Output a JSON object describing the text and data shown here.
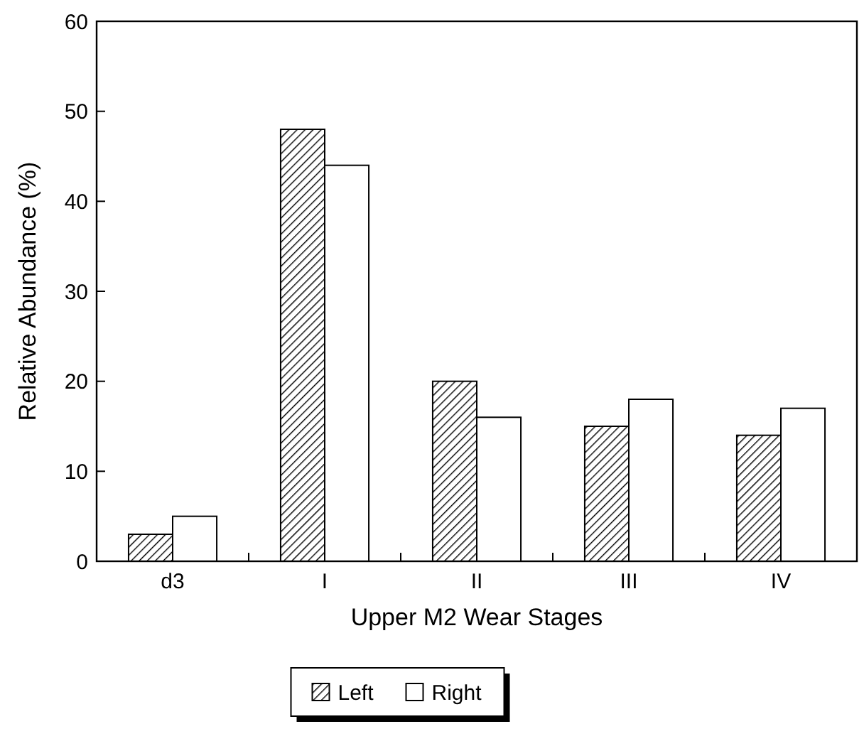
{
  "chart_data": {
    "type": "bar",
    "xlabel": "Upper M2 Wear Stages",
    "ylabel": "Relative Abundance (%)",
    "categories": [
      "d3",
      "I",
      "II",
      "III",
      "IV"
    ],
    "series": [
      {
        "name": "Left",
        "color": "#000000",
        "values": [
          3,
          48,
          20,
          15,
          14
        ]
      },
      {
        "name": "Right",
        "color": "#ffffff",
        "values": [
          5,
          44,
          16,
          18,
          17
        ]
      }
    ],
    "ylim": [
      0,
      60
    ],
    "yticks": [
      0,
      10,
      20,
      30,
      40,
      50,
      60
    ],
    "grid": false,
    "legend": "bottom"
  }
}
